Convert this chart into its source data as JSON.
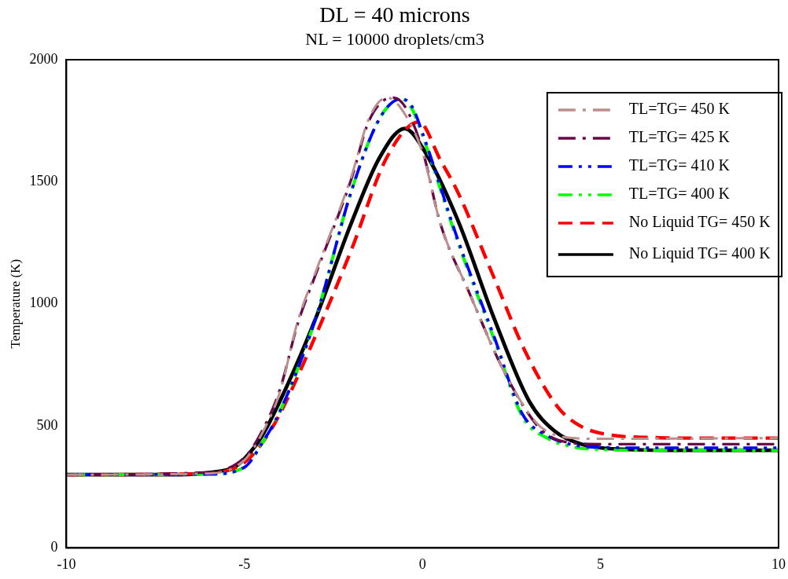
{
  "chart_data": {
    "type": "line",
    "title": "DL = 40 microns",
    "subtitle": "NL = 10000 droplets/cm3",
    "ylabel": "Temperature (K)",
    "xlim": [
      -10,
      10
    ],
    "xticks": [
      -10,
      -5,
      0,
      5,
      10
    ],
    "ylim": [
      0,
      2000
    ],
    "yticks": [
      0,
      500,
      1000,
      1500,
      2000
    ],
    "grid": false,
    "legend": "top right",
    "marker": "none",
    "series": [
      {
        "name": "TL=TG= 450 K",
        "color": "#bc8f8f",
        "line_style": "dashdot",
        "x": [
          -10,
          -6,
          -5,
          -4.5,
          -4,
          -3.5,
          -3,
          -2,
          -1.5,
          -1,
          -0.6,
          0,
          0.5,
          1.3,
          2.3,
          3.2,
          3.6,
          4.2,
          5,
          10
        ],
        "values": [
          300,
          305,
          360,
          470,
          640,
          930,
          1130,
          1520,
          1760,
          1845,
          1800,
          1620,
          1330,
          1050,
          720,
          512,
          470,
          450,
          447,
          450
        ]
      },
      {
        "name": "TL=TG= 425 K",
        "color": "#670748",
        "line_style": "dashdot",
        "x": [
          -10,
          -6,
          -5,
          -4.5,
          -4,
          -3.5,
          -3,
          -2,
          -1.5,
          -0.85,
          -0.5,
          0,
          0.5,
          1.3,
          2.3,
          3.2,
          3.6,
          4.2,
          5,
          10
        ],
        "values": [
          300,
          310,
          370,
          480,
          650,
          920,
          1120,
          1510,
          1750,
          1845,
          1810,
          1630,
          1330,
          1050,
          720,
          505,
          455,
          430,
          425,
          425
        ]
      },
      {
        "name": "TL=TG= 410 K",
        "color": "#0000ff",
        "line_style": "dashdotdot",
        "x": [
          -10,
          -6,
          -5,
          -4.5,
          -4,
          -3,
          -2,
          -1.2,
          -0.6,
          -0.3,
          0,
          1,
          2,
          2.8,
          3.5,
          4.3,
          5,
          6,
          10
        ],
        "values": [
          300,
          302,
          330,
          430,
          560,
          940,
          1460,
          1760,
          1840,
          1810,
          1700,
          1260,
          870,
          550,
          460,
          420,
          412,
          410,
          410
        ]
      },
      {
        "name": "TL=TG= 400 K",
        "color": "#00ff00",
        "line_style": "dashdotdot",
        "x": [
          -10,
          -6,
          -5,
          -4.5,
          -4,
          -3,
          -2,
          -1.2,
          -0.6,
          -0.3,
          0,
          1,
          2,
          2.8,
          3.5,
          4.3,
          5,
          6,
          10
        ],
        "values": [
          300,
          302,
          330,
          430,
          560,
          940,
          1460,
          1760,
          1840,
          1800,
          1690,
          1250,
          860,
          540,
          450,
          412,
          403,
          400,
          400
        ]
      },
      {
        "name": "No Liquid TG= 450 K",
        "color": "#ff0000",
        "line_style": "dashed",
        "x": [
          -10,
          -6,
          -5,
          -4.5,
          -4,
          -3,
          -2,
          -1,
          -0.1,
          0.5,
          1,
          2,
          2.9,
          3.8,
          4.4,
          5.3,
          6.5,
          7,
          10
        ],
        "values": [
          300,
          305,
          350,
          430,
          550,
          870,
          1220,
          1600,
          1745,
          1590,
          1455,
          1110,
          800,
          577,
          502,
          462,
          452,
          450,
          450
        ]
      },
      {
        "name": "No Liquid TG= 400 K",
        "color": "#000000",
        "line_style": "solid",
        "x": [
          -10,
          -7,
          -6,
          -5.3,
          -5,
          -4.5,
          -3.8,
          -3,
          -2,
          -1.2,
          -0.5,
          0,
          1,
          2,
          3,
          3.7,
          4.4,
          5,
          6,
          7,
          10
        ],
        "values": [
          300,
          300,
          308,
          330,
          365,
          460,
          665,
          940,
          1330,
          1600,
          1718,
          1640,
          1340,
          945,
          600,
          480,
          428,
          410,
          402,
          400,
          400
        ]
      }
    ]
  }
}
